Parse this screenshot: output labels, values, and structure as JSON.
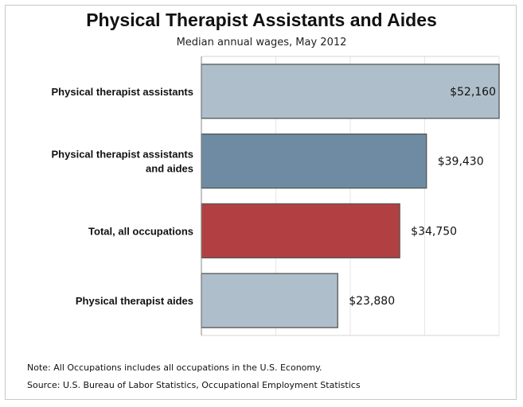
{
  "chart_data": {
    "type": "bar",
    "orientation": "horizontal",
    "title": "Physical Therapist Assistants and Aides",
    "subtitle": "Median annual wages, May 2012",
    "categories": [
      [
        "Physical therapist assistants"
      ],
      [
        "Physical therapist assistants",
        "and aides"
      ],
      [
        "Total, all occupations"
      ],
      [
        "Physical therapist aides"
      ]
    ],
    "values": [
      52160,
      39430,
      34750,
      23880
    ],
    "value_labels": [
      "$52,160",
      "$39,430",
      "$34,750",
      "$23,880"
    ],
    "bar_colors": [
      "#aebfcb",
      "#6e8ba3",
      "#b24043",
      "#aebfcb"
    ],
    "xlim": [
      0,
      52160
    ],
    "grid": true
  },
  "footer": {
    "note": "Note: All Occupations includes all occupations in the U.S. Economy.",
    "source": "Source: U.S. Bureau of Labor Statistics, Occupational Employment Statistics"
  }
}
